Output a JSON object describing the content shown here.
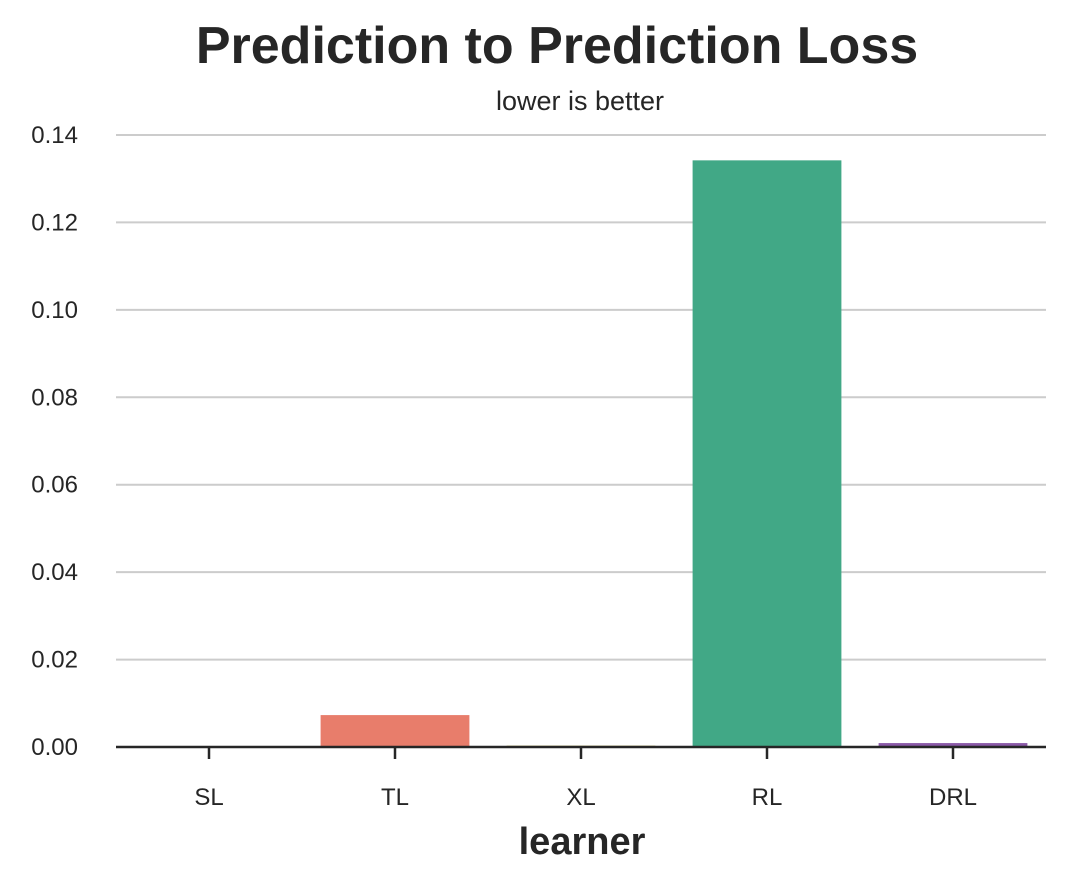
{
  "chart_data": {
    "type": "bar",
    "title": "Prediction to Prediction Loss",
    "subtitle": "lower is better",
    "xlabel": "learner",
    "ylabel": "",
    "categories": [
      "SL",
      "TL",
      "XL",
      "RL",
      "DRL"
    ],
    "values": [
      0.0,
      0.0073,
      0.0003,
      0.1342,
      0.0009
    ],
    "colors": [
      "#4a90c8",
      "#e87d6b",
      "#b8b33a",
      "#41a886",
      "#8b5aa8"
    ],
    "ylim": [
      0,
      0.14
    ],
    "yticks": [
      "0.00",
      "0.02",
      "0.04",
      "0.06",
      "0.08",
      "0.10",
      "0.12",
      "0.14"
    ],
    "ytick_values": [
      0,
      0.02,
      0.04,
      0.06,
      0.08,
      0.1,
      0.12,
      0.14
    ],
    "grid": "horizontal",
    "legend": "none"
  }
}
